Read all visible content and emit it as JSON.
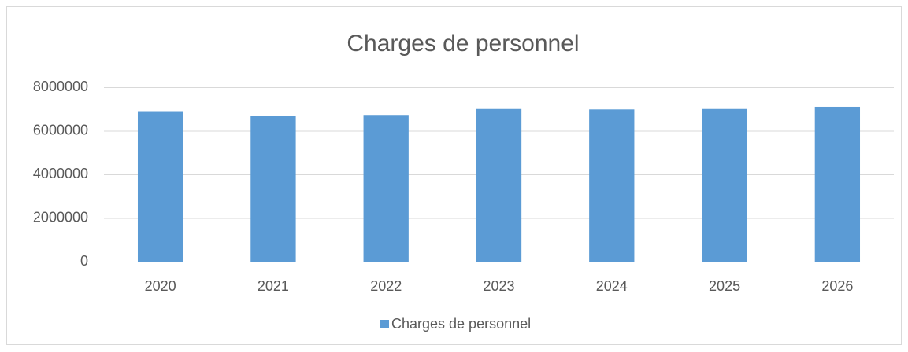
{
  "chart_data": {
    "type": "bar",
    "title": "Charges de personnel",
    "categories": [
      "2020",
      "2021",
      "2022",
      "2023",
      "2024",
      "2025",
      "2026"
    ],
    "series": [
      {
        "name": "Charges de personnel",
        "color": "#5b9bd5",
        "values": [
          6900000,
          6700000,
          6730000,
          7000000,
          6980000,
          7000000,
          7100000
        ]
      }
    ],
    "ylim": [
      0,
      8000000
    ],
    "yticks": [
      0,
      2000000,
      4000000,
      6000000,
      8000000
    ],
    "grid": true,
    "legend": "bottom"
  }
}
